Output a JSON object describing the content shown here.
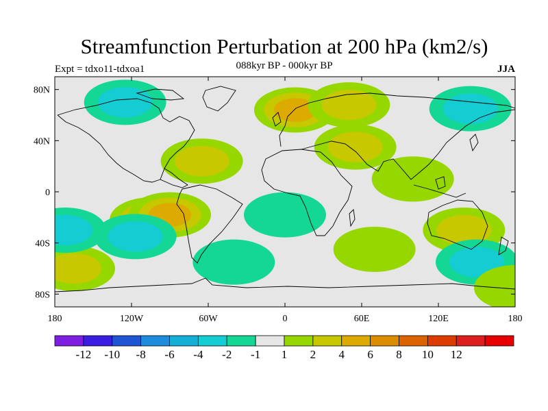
{
  "title": "Streamfunction Perturbation at 200 hPa (km2/s)",
  "subtitle_left": "Expt = tdxo11-tdxoa1",
  "subtitle_center": "088kyr BP - 000kyr BP",
  "subtitle_right": "JJA",
  "chart_data": {
    "type": "heatmap",
    "projection": "cylindrical-equidistant",
    "xlim": [
      -180,
      180
    ],
    "ylim": [
      -90,
      90
    ],
    "x_ticks": [
      {
        "value": -180,
        "label": "180"
      },
      {
        "value": -120,
        "label": "120W"
      },
      {
        "value": -60,
        "label": "60W"
      },
      {
        "value": 0,
        "label": "0"
      },
      {
        "value": 60,
        "label": "60E"
      },
      {
        "value": 120,
        "label": "120E"
      },
      {
        "value": 180,
        "label": "180"
      }
    ],
    "y_ticks": [
      {
        "value": 80,
        "label": "80N"
      },
      {
        "value": 40,
        "label": "40N"
      },
      {
        "value": 0,
        "label": "0"
      },
      {
        "value": -40,
        "label": "40S"
      },
      {
        "value": -80,
        "label": "80S"
      }
    ],
    "colorbar": {
      "colors": [
        "#7e1ee0",
        "#3c1ee0",
        "#1e55d2",
        "#1e8cdc",
        "#14afd7",
        "#14cdd2",
        "#14d796",
        "#e6e6e6",
        "#96d700",
        "#c8c800",
        "#dcaa00",
        "#dc8c00",
        "#dc6400",
        "#dc3c00",
        "#dc1e1e",
        "#e60000"
      ],
      "tick_labels": [
        "-12",
        "-10",
        "-8",
        "-6",
        "-4",
        "-2",
        "-1",
        "1",
        "2",
        "4",
        "6",
        "8",
        "10",
        "12"
      ],
      "levels": [
        -12,
        -10,
        -8,
        -6,
        -4,
        -2,
        -1,
        1,
        2,
        4,
        6,
        8,
        10,
        12
      ]
    },
    "anomaly_centers": [
      {
        "lon": -105,
        "lat": -22,
        "level": 6
      },
      {
        "lon": -90,
        "lat": -18,
        "level": 5
      },
      {
        "lon": -117,
        "lat": -35,
        "level": -4
      },
      {
        "lon": -165,
        "lat": -60,
        "level": 3
      },
      {
        "lon": -40,
        "lat": -55,
        "level": -2
      },
      {
        "lon": -125,
        "lat": 70,
        "level": -4
      },
      {
        "lon": 8,
        "lat": 64,
        "level": 6
      },
      {
        "lon": 50,
        "lat": 68,
        "level": 4
      },
      {
        "lon": 55,
        "lat": 35,
        "level": 3
      },
      {
        "lon": -65,
        "lat": 24,
        "level": 3
      },
      {
        "lon": 140,
        "lat": -30,
        "level": 4
      },
      {
        "lon": 150,
        "lat": -55,
        "level": -3
      },
      {
        "lon": 145,
        "lat": 65,
        "level": -3
      },
      {
        "lon": 0,
        "lat": -18,
        "level": -1
      },
      {
        "lon": 70,
        "lat": -45,
        "level": 2
      },
      {
        "lon": -172,
        "lat": -30,
        "level": -3
      },
      {
        "lon": 100,
        "lat": 10,
        "level": 2
      },
      {
        "lon": 180,
        "lat": -75,
        "level": 2
      }
    ]
  }
}
